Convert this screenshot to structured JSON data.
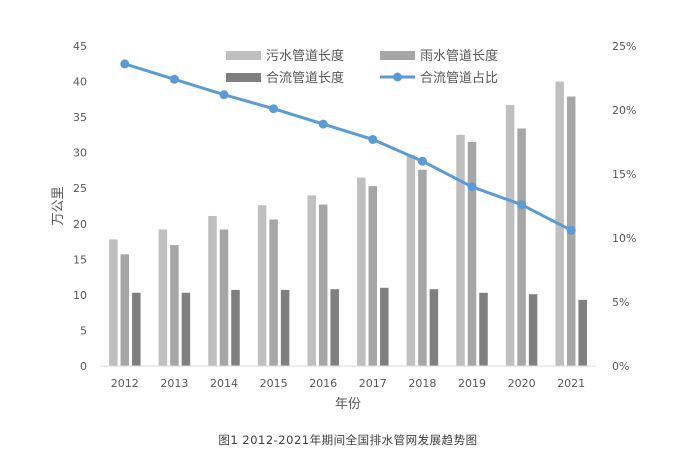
{
  "chart_data": {
    "type": "bar",
    "categories": [
      "2012",
      "2013",
      "2014",
      "2015",
      "2016",
      "2017",
      "2018",
      "2019",
      "2020",
      "2021"
    ],
    "series": [
      {
        "name": "污水管道长度",
        "type": "bar",
        "axis": "left",
        "color": "#bfbfbf",
        "values": [
          17.8,
          19.2,
          21.1,
          22.6,
          24.0,
          26.5,
          29.7,
          32.5,
          36.7,
          40.0
        ]
      },
      {
        "name": "雨水管道长度",
        "type": "bar",
        "axis": "left",
        "color": "#a6a6a6",
        "values": [
          15.7,
          17.0,
          19.2,
          20.6,
          22.7,
          25.3,
          27.6,
          31.5,
          33.4,
          37.9
        ]
      },
      {
        "name": "合流管道长度",
        "type": "bar",
        "axis": "left",
        "color": "#7f7f7f",
        "values": [
          10.3,
          10.3,
          10.7,
          10.7,
          10.8,
          11.0,
          10.8,
          10.3,
          10.1,
          9.3
        ]
      },
      {
        "name": "合流管道占比",
        "type": "line",
        "axis": "right",
        "color": "#5b9bd5",
        "values": [
          23.6,
          22.4,
          21.2,
          20.1,
          18.9,
          17.7,
          16.0,
          14.0,
          12.6,
          10.6
        ]
      }
    ],
    "ylabel": "万公里",
    "xlabel": "年份",
    "ylim": [
      0,
      45
    ],
    "yticks": [
      "0",
      "5",
      "10",
      "15",
      "20",
      "25",
      "30",
      "35",
      "40",
      "45"
    ],
    "y2lim": [
      0,
      25
    ],
    "y2ticks": [
      "0%",
      "5%",
      "10%",
      "15%",
      "20%",
      "25%"
    ],
    "legend_position": "top",
    "grid": false
  },
  "caption": "图1  2012-2021年期间全国排水管网发展趋势图"
}
